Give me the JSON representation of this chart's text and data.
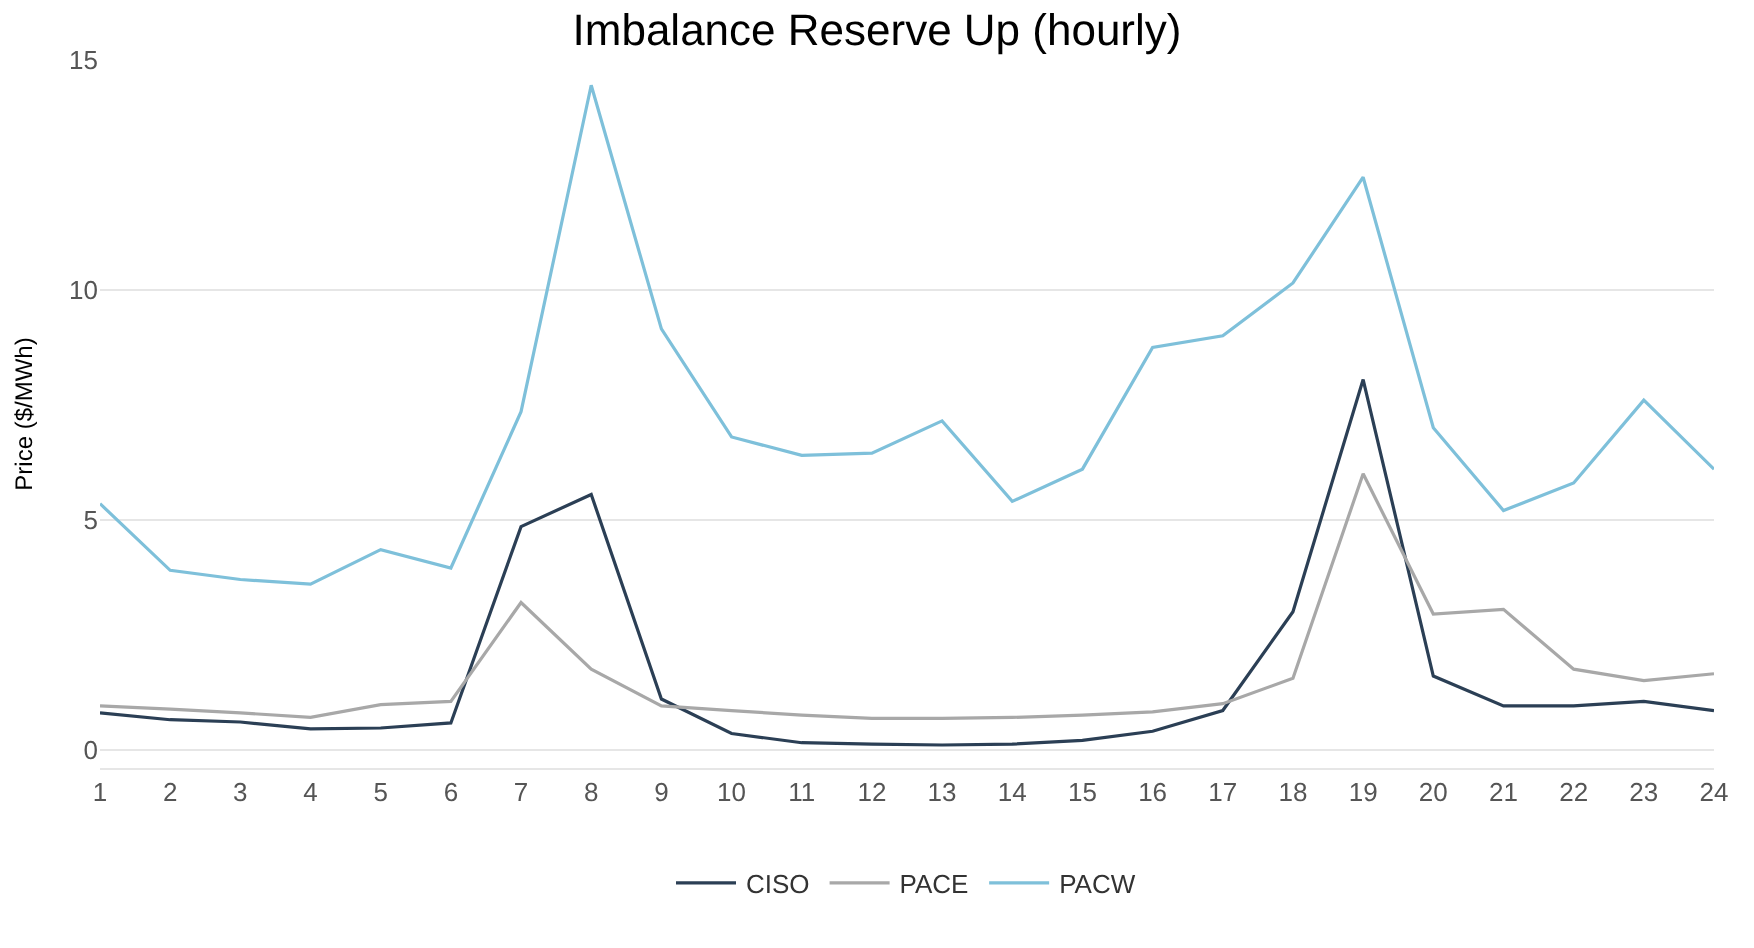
{
  "chart_data": {
    "type": "line",
    "title": "Imbalance Reserve Up (hourly)",
    "ylabel": "Price ($/MWh)",
    "x": [
      1,
      2,
      3,
      4,
      5,
      6,
      7,
      8,
      9,
      10,
      11,
      12,
      13,
      14,
      15,
      16,
      17,
      18,
      19,
      20,
      21,
      22,
      23,
      24
    ],
    "series": [
      {
        "name": "CISO",
        "color": "#2b3f55",
        "values": [
          0.8,
          0.65,
          0.6,
          0.45,
          0.47,
          0.58,
          4.85,
          5.55,
          1.1,
          0.35,
          0.15,
          0.12,
          0.1,
          0.12,
          0.2,
          0.4,
          0.85,
          3.0,
          8.05,
          1.6,
          0.95,
          0.95,
          1.05,
          0.85
        ]
      },
      {
        "name": "PACE",
        "color": "#a8a8a8",
        "values": [
          0.95,
          0.88,
          0.8,
          0.7,
          0.98,
          1.05,
          3.2,
          1.75,
          0.95,
          0.85,
          0.75,
          0.68,
          0.68,
          0.7,
          0.75,
          0.82,
          1.0,
          1.55,
          6.0,
          2.95,
          3.05,
          1.75,
          1.5,
          1.65
        ]
      },
      {
        "name": "PACW",
        "color": "#7ec0da",
        "values": [
          5.35,
          3.9,
          3.7,
          3.6,
          4.35,
          3.95,
          7.35,
          14.45,
          9.15,
          6.8,
          6.4,
          6.45,
          7.15,
          5.4,
          6.1,
          8.75,
          9.0,
          10.15,
          12.45,
          7.0,
          5.2,
          5.8,
          7.6,
          6.1
        ]
      }
    ],
    "xlim": [
      1,
      24
    ],
    "xticks": [
      1,
      2,
      3,
      4,
      5,
      6,
      7,
      8,
      9,
      10,
      11,
      12,
      13,
      14,
      15,
      16,
      17,
      18,
      19,
      20,
      21,
      22,
      23,
      24
    ],
    "ylim": [
      -0.4,
      15
    ],
    "yticks": [
      0,
      5,
      10,
      15
    ],
    "grid": "y",
    "legend": "bottom",
    "marker": "none",
    "line_style": "solid"
  }
}
